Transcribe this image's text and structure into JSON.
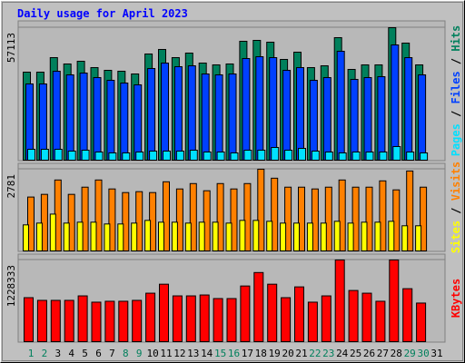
{
  "chart_data": [
    {
      "type": "bar",
      "title": "Daily usage for April 2023",
      "legend_separator": " / ",
      "ylim": [
        0,
        59460
      ],
      "yticks": [
        57113
      ],
      "grid": true,
      "series": [
        {
          "name": "Pages",
          "color": "#00e0ff",
          "values": [
            4694,
            4694,
            4694,
            3912,
            4303,
            3521,
            3130,
            3130,
            3521,
            3912,
            3912,
            3912,
            4303,
            3521,
            3521,
            3130,
            4303,
            4303,
            5477,
            4303,
            5086,
            3912,
            3521,
            3130,
            3521,
            3521,
            3521,
            5868,
            3521,
            3130,
            null
          ]
        },
        {
          "name": "Files",
          "color": "#0040ff",
          "values": [
            32860,
            32860,
            38338,
            36773,
            37555,
            35599,
            34426,
            33252,
            32470,
            39511,
            41858,
            40294,
            40685,
            37164,
            36773,
            37164,
            43814,
            44597,
            44205,
            38729,
            39902,
            34426,
            35599,
            46944,
            34817,
            35599,
            35990,
            49682,
            44205,
            36773,
            null
          ]
        },
        {
          "name": "Hits",
          "color": "#00805c",
          "values": [
            37945,
            37945,
            44205,
            41467,
            42640,
            39902,
            38729,
            38338,
            37164,
            45770,
            47726,
            44205,
            46162,
            41858,
            41076,
            41467,
            51247,
            51638,
            50856,
            43423,
            46553,
            39902,
            40685,
            52812,
            39120,
            41076,
            41076,
            57113,
            50465,
            41076,
            null
          ]
        }
      ]
    },
    {
      "type": "bar",
      "legend_separator": " / ",
      "ylim": [
        0,
        2934
      ],
      "yticks": [
        2781
      ],
      "grid": true,
      "series": [
        {
          "name": "Sites",
          "color": "#ffff00",
          "values": [
            886,
            947,
            1253,
            947,
            978,
            978,
            917,
            917,
            947,
            1039,
            978,
            978,
            947,
            978,
            978,
            947,
            1039,
            1039,
            1008,
            947,
            947,
            947,
            947,
            1008,
            947,
            978,
            978,
            1008,
            856,
            856,
            null
          ]
        },
        {
          "name": "Visits",
          "color": "#ff8000",
          "values": [
            1834,
            1925,
            2414,
            1925,
            2170,
            2414,
            2109,
            1986,
            2017,
            1986,
            2353,
            2109,
            2292,
            2048,
            2292,
            2109,
            2292,
            2781,
            2475,
            2170,
            2170,
            2109,
            2170,
            2414,
            2170,
            2170,
            2384,
            2078,
            2720,
            2170,
            null
          ]
        }
      ]
    },
    {
      "type": "bar",
      "ylim": [
        0,
        1295824
      ],
      "yticks": [
        1228333
      ],
      "grid": true,
      "categories": [
        "1",
        "2",
        "3",
        "4",
        "5",
        "6",
        "7",
        "8",
        "9",
        "10",
        "11",
        "12",
        "13",
        "14",
        "15",
        "16",
        "17",
        "18",
        "19",
        "20",
        "21",
        "22",
        "23",
        "24",
        "25",
        "26",
        "27",
        "28",
        "29",
        "30",
        "31"
      ],
      "category_colors": [
        "#00805c",
        "#00805c",
        "#000000",
        "#000000",
        "#000000",
        "#000000",
        "#000000",
        "#00805c",
        "#00805c",
        "#000000",
        "#000000",
        "#000000",
        "#000000",
        "#000000",
        "#00805c",
        "#00805c",
        "#000000",
        "#000000",
        "#000000",
        "#000000",
        "#000000",
        "#00805c",
        "#00805c",
        "#000000",
        "#000000",
        "#000000",
        "#000000",
        "#000000",
        "#00805c",
        "#00805c",
        "#000000"
      ],
      "series": [
        {
          "name": "KBytes",
          "color": "#ff0000",
          "values": [
            661400,
            620900,
            620900,
            620900,
            688400,
            593900,
            607400,
            607400,
            620900,
            728900,
            863900,
            688400,
            688400,
            701900,
            647900,
            647900,
            836900,
            1039300,
            863900,
            661400,
            823400,
            593900,
            688400,
            1228333,
            769400,
            728900,
            607400,
            1228333,
            796400,
            580400,
            null
          ]
        }
      ]
    }
  ]
}
